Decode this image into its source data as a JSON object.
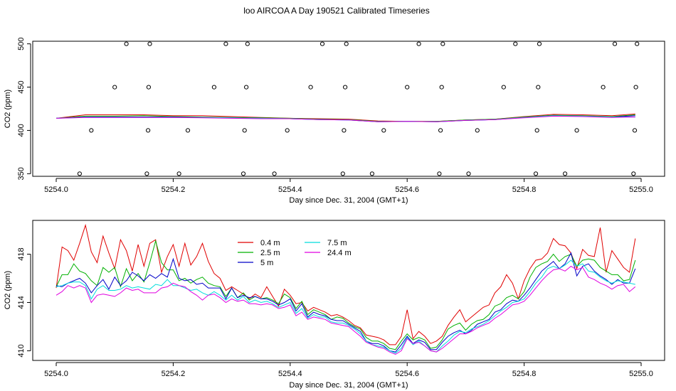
{
  "title": "loo AIRCOA A  Day 190521  Calibrated Timeseries",
  "legend_entries": [
    "0.4 m",
    "2.5 m",
    "5 m",
    "7.5 m",
    "24.4 m"
  ],
  "chart_data": [
    {
      "type": "line",
      "title": "loo AIRCOA A  Day 190521  Calibrated Timeseries",
      "xlabel": "Day since Dec. 31, 2004 (GMT+1)",
      "ylabel": "CO2 (ppm)",
      "xlim": [
        5254.0,
        5255.0
      ],
      "ylim": [
        347,
        503
      ],
      "xticks": [
        "5254.0",
        "5254.2",
        "5254.4",
        "5254.6",
        "5254.8",
        "5255.0"
      ],
      "yticks": [
        "350",
        "400",
        "450",
        "500"
      ],
      "legend": "none",
      "series": [
        {
          "color": "#e00000",
          "x": [
            5254.0,
            5254.05,
            5254.1,
            5254.15,
            5254.2,
            5254.25,
            5254.3,
            5254.35,
            5254.4,
            5254.45,
            5254.5,
            5254.55,
            5254.6,
            5254.65,
            5254.7,
            5254.75,
            5254.8,
            5254.85,
            5254.9,
            5254.95,
            5254.99
          ],
          "y": [
            414,
            418,
            418,
            418,
            417,
            417,
            416,
            415,
            414,
            413.5,
            413,
            411,
            410.5,
            410.5,
            412,
            413,
            416,
            418.5,
            418,
            417,
            419
          ]
        },
        {
          "color": "#00b000",
          "x": [
            5254.0,
            5254.05,
            5254.1,
            5254.15,
            5254.2,
            5254.25,
            5254.3,
            5254.35,
            5254.4,
            5254.45,
            5254.5,
            5254.55,
            5254.6,
            5254.65,
            5254.7,
            5254.75,
            5254.8,
            5254.85,
            5254.9,
            5254.95,
            5254.99
          ],
          "y": [
            414,
            416.5,
            416.5,
            417,
            416,
            415.5,
            415,
            414.5,
            414,
            413,
            412.5,
            410.5,
            410.5,
            410.5,
            412,
            413,
            415.5,
            417.5,
            417,
            416,
            418
          ]
        },
        {
          "color": "#0000c8",
          "x": [
            5254.0,
            5254.05,
            5254.1,
            5254.15,
            5254.2,
            5254.25,
            5254.3,
            5254.35,
            5254.4,
            5254.45,
            5254.5,
            5254.55,
            5254.6,
            5254.65,
            5254.7,
            5254.75,
            5254.8,
            5254.85,
            5254.9,
            5254.95,
            5254.99
          ],
          "y": [
            414,
            415.5,
            415.5,
            415.5,
            415.5,
            415,
            414.5,
            414,
            413.5,
            412.5,
            412,
            410,
            410.5,
            410,
            411.5,
            412.5,
            415,
            417,
            416.5,
            415.5,
            417
          ]
        },
        {
          "color": "#00dcdc",
          "x": [
            5254.0,
            5254.05,
            5254.1,
            5254.15,
            5254.2,
            5254.25,
            5254.3,
            5254.35,
            5254.4,
            5254.45,
            5254.5,
            5254.55,
            5254.6,
            5254.65,
            5254.7,
            5254.75,
            5254.8,
            5254.85,
            5254.9,
            5254.95,
            5254.99
          ],
          "y": [
            414,
            415,
            415,
            415,
            415,
            415,
            414.5,
            414,
            413.5,
            412.5,
            412,
            410,
            410.5,
            410,
            411.5,
            412.5,
            415,
            417,
            416.5,
            415.5,
            415.5
          ]
        },
        {
          "color": "#e000e0",
          "x": [
            5254.0,
            5254.05,
            5254.1,
            5254.15,
            5254.2,
            5254.25,
            5254.3,
            5254.35,
            5254.4,
            5254.45,
            5254.5,
            5254.55,
            5254.6,
            5254.65,
            5254.7,
            5254.75,
            5254.8,
            5254.85,
            5254.9,
            5254.95,
            5254.99
          ],
          "y": [
            414,
            415,
            415,
            415,
            415,
            414.5,
            414,
            413.5,
            413.5,
            412.5,
            412,
            410,
            410.5,
            410,
            411.5,
            412.5,
            414.5,
            416.5,
            416,
            415,
            415.5
          ]
        }
      ],
      "marker_series": {
        "marker": "open-circle",
        "x": [
          5254.04,
          5254.06,
          5254.1,
          5254.12,
          5254.155,
          5254.157,
          5254.158,
          5254.16,
          5254.21,
          5254.225,
          5254.27,
          5254.29,
          5254.32,
          5254.322,
          5254.325,
          5254.327,
          5254.373,
          5254.395,
          5254.435,
          5254.455,
          5254.49,
          5254.492,
          5254.494,
          5254.496,
          5254.54,
          5254.56,
          5254.6,
          5254.62,
          5254.655,
          5254.657,
          5254.659,
          5254.661,
          5254.705,
          5254.72,
          5254.765,
          5254.785,
          5254.82,
          5254.822,
          5254.824,
          5254.826,
          5254.87,
          5254.89,
          5254.935,
          5254.955,
          5254.987,
          5254.989,
          5254.991,
          5254.993
        ],
        "y": [
          350,
          400,
          450,
          500,
          350,
          400,
          450,
          500,
          350,
          400,
          450,
          500,
          350,
          400,
          450,
          500,
          350,
          400,
          450,
          500,
          350,
          400,
          450,
          500,
          350,
          400,
          450,
          500,
          350,
          400,
          450,
          500,
          350,
          400,
          450,
          500,
          350,
          400,
          450,
          500,
          350,
          400,
          450,
          500,
          350,
          400,
          450,
          500
        ]
      }
    },
    {
      "type": "line",
      "xlabel": "Day since Dec. 31, 2004 (GMT+1)",
      "ylabel": "CO2 (ppm)",
      "xlim": [
        5254.0,
        5255.0
      ],
      "ylim": [
        409.2,
        420.8
      ],
      "xticks": [
        "5254.0",
        "5254.2",
        "5254.4",
        "5254.6",
        "5254.8",
        "5255.0"
      ],
      "yticks": [
        "410",
        "414",
        "418"
      ],
      "legend": "top-left",
      "x": [
        5254.0,
        5254.01,
        5254.02,
        5254.03,
        5254.04,
        5254.05,
        5254.06,
        5254.07,
        5254.08,
        5254.09,
        5254.1,
        5254.11,
        5254.12,
        5254.13,
        5254.14,
        5254.15,
        5254.16,
        5254.17,
        5254.18,
        5254.19,
        5254.2,
        5254.21,
        5254.22,
        5254.23,
        5254.24,
        5254.25,
        5254.26,
        5254.27,
        5254.28,
        5254.29,
        5254.3,
        5254.31,
        5254.32,
        5254.33,
        5254.34,
        5254.35,
        5254.36,
        5254.37,
        5254.38,
        5254.39,
        5254.4,
        5254.41,
        5254.42,
        5254.43,
        5254.44,
        5254.45,
        5254.46,
        5254.47,
        5254.48,
        5254.49,
        5254.5,
        5254.51,
        5254.52,
        5254.53,
        5254.54,
        5254.55,
        5254.56,
        5254.57,
        5254.58,
        5254.59,
        5254.6,
        5254.61,
        5254.62,
        5254.63,
        5254.64,
        5254.65,
        5254.66,
        5254.67,
        5254.68,
        5254.69,
        5254.7,
        5254.71,
        5254.72,
        5254.73,
        5254.74,
        5254.75,
        5254.76,
        5254.77,
        5254.78,
        5254.79,
        5254.8,
        5254.81,
        5254.82,
        5254.83,
        5254.84,
        5254.85,
        5254.86,
        5254.87,
        5254.88,
        5254.89,
        5254.9,
        5254.91,
        5254.92,
        5254.93,
        5254.94,
        5254.95,
        5254.96,
        5254.97,
        5254.98,
        5254.99
      ],
      "series": [
        {
          "name": "0.4 m",
          "color": "#e00000",
          "values": [
            415.2,
            418.6,
            418.3,
            417.5,
            418.9,
            420.4,
            418.2,
            417.3,
            419.5,
            418.1,
            416.8,
            419.2,
            418.3,
            416.6,
            418.8,
            417.0,
            418.9,
            419.2,
            416.5,
            417.8,
            418.8,
            417.0,
            418.9,
            417.1,
            417.8,
            418.9,
            417.4,
            416.4,
            416.0,
            415.0,
            415.3,
            415.0,
            414.7,
            414.3,
            414.7,
            414.4,
            415.3,
            414.5,
            413.7,
            415.1,
            414.6,
            413.9,
            414.0,
            413.3,
            413.6,
            413.4,
            413.2,
            412.9,
            413.0,
            412.8,
            412.5,
            412.1,
            411.9,
            411.3,
            411.2,
            411.1,
            410.9,
            410.5,
            410.5,
            411.2,
            413.4,
            411.0,
            411.6,
            411.2,
            410.6,
            410.8,
            411.2,
            412.1,
            412.8,
            413.4,
            412.4,
            412.8,
            413.2,
            413.6,
            413.8,
            414.8,
            415.3,
            416.3,
            415.6,
            414.3,
            415.8,
            416.8,
            417.5,
            417.6,
            418.1,
            419.3,
            418.8,
            418.7,
            418.1,
            416.8,
            418.4,
            417.9,
            417.8,
            420.2,
            416.5,
            418.3,
            417.6,
            416.9,
            416.5,
            419.3
          ]
        },
        {
          "name": "2.5 m",
          "color": "#00b000",
          "values": [
            415.3,
            416.3,
            416.3,
            417.2,
            416.6,
            416.4,
            415.8,
            415.4,
            416.9,
            416.5,
            416.9,
            415.3,
            416.8,
            415.8,
            416.4,
            415.7,
            417.3,
            419.1,
            417.3,
            416.7,
            416.7,
            415.8,
            416.0,
            415.6,
            415.9,
            416.1,
            415.6,
            415.4,
            415.3,
            414.5,
            415.2,
            414.4,
            414.8,
            414.2,
            414.5,
            414.3,
            414.4,
            414.2,
            413.9,
            414.7,
            414.4,
            413.5,
            414.1,
            413.0,
            413.4,
            413.2,
            413.0,
            412.6,
            412.8,
            412.7,
            412.3,
            412.0,
            411.8,
            411.1,
            410.8,
            410.8,
            410.6,
            410.2,
            410.1,
            410.8,
            411.4,
            410.9,
            411.1,
            410.9,
            410.2,
            410.3,
            410.9,
            411.8,
            412.1,
            412.3,
            411.7,
            412.2,
            412.5,
            412.6,
            413.0,
            413.7,
            413.9,
            414.4,
            414.6,
            414.3,
            414.9,
            416.1,
            416.9,
            417.2,
            417.4,
            418.0,
            417.4,
            417.8,
            418.0,
            417.0,
            417.5,
            417.6,
            417.5,
            416.9,
            416.6,
            416.3,
            416.3,
            415.8,
            415.9,
            417.5
          ]
        },
        {
          "name": "5 m",
          "color": "#0000c8",
          "values": [
            415.4,
            415.3,
            415.6,
            415.8,
            416.0,
            415.6,
            414.8,
            415.4,
            415.9,
            415.1,
            416.1,
            415.4,
            415.8,
            416.5,
            416.2,
            415.8,
            416.3,
            416.0,
            416.4,
            416.1,
            417.6,
            416.0,
            415.8,
            415.9,
            415.5,
            415.6,
            415.2,
            415.2,
            415.2,
            414.3,
            415.2,
            414.4,
            414.6,
            414.4,
            414.5,
            414.3,
            414.3,
            414.1,
            413.8,
            414.0,
            414.3,
            413.3,
            413.9,
            412.8,
            413.2,
            413.0,
            412.9,
            412.6,
            412.5,
            412.5,
            412.2,
            411.9,
            411.6,
            410.8,
            410.6,
            410.6,
            410.4,
            410.0,
            409.9,
            410.5,
            411.2,
            410.6,
            410.9,
            410.7,
            410.1,
            410.1,
            410.7,
            411.2,
            411.5,
            411.7,
            411.4,
            411.7,
            412.2,
            412.4,
            412.6,
            413.2,
            413.4,
            413.9,
            414.2,
            414.1,
            414.6,
            415.2,
            415.9,
            416.6,
            417.0,
            417.4,
            416.8,
            417.2,
            418.1,
            416.2,
            417.0,
            417.2,
            416.6,
            416.2,
            415.9,
            415.5,
            415.9,
            415.6,
            415.6,
            416.8
          ]
        },
        {
          "name": "7.5 m",
          "color": "#00dcdc",
          "values": [
            415.3,
            415.4,
            415.6,
            415.7,
            415.7,
            415.4,
            414.3,
            415.1,
            415.4,
            415.0,
            415.0,
            415.1,
            415.4,
            415.2,
            415.3,
            415.2,
            415.1,
            415.5,
            415.4,
            415.9,
            415.4,
            415.4,
            415.2,
            415.0,
            415.1,
            414.8,
            414.6,
            414.9,
            414.6,
            414.2,
            414.6,
            414.2,
            414.5,
            414.0,
            414.2,
            414.0,
            414.1,
            413.9,
            413.6,
            413.8,
            414.0,
            413.1,
            413.5,
            412.7,
            413.0,
            412.8,
            412.8,
            412.4,
            412.3,
            412.3,
            412.1,
            411.8,
            411.4,
            410.8,
            410.5,
            410.4,
            410.3,
            410.0,
            409.8,
            410.2,
            411.1,
            410.5,
            410.8,
            410.4,
            410.0,
            409.9,
            410.4,
            410.8,
            411.3,
            411.6,
            411.5,
            411.8,
            412.0,
            412.2,
            412.5,
            412.9,
            413.3,
            413.6,
            414.0,
            414.1,
            414.3,
            414.9,
            415.6,
            416.1,
            416.8,
            417.0,
            416.8,
            417.1,
            417.5,
            417.0,
            417.2,
            416.6,
            416.5,
            416.1,
            415.8,
            415.6,
            415.8,
            415.7,
            415.6,
            415.5
          ]
        },
        {
          "name": "24.4 m",
          "color": "#e000e0",
          "values": [
            414.6,
            414.9,
            415.4,
            415.2,
            415.4,
            415.2,
            414.0,
            414.6,
            414.7,
            414.6,
            414.5,
            414.8,
            415.2,
            415.0,
            415.1,
            414.8,
            414.8,
            414.8,
            415.2,
            415.3,
            415.6,
            415.4,
            415.3,
            414.9,
            414.6,
            414.2,
            414.6,
            414.7,
            414.4,
            414.0,
            414.3,
            414.1,
            414.2,
            413.9,
            413.9,
            413.8,
            413.9,
            413.8,
            413.5,
            413.6,
            413.8,
            412.9,
            413.2,
            412.6,
            412.8,
            412.7,
            412.6,
            412.3,
            412.2,
            412.1,
            412.0,
            411.6,
            411.2,
            410.7,
            410.5,
            410.3,
            410.2,
            409.9,
            409.7,
            410.0,
            411.0,
            410.6,
            410.7,
            410.4,
            410.0,
            409.9,
            410.2,
            410.6,
            411.0,
            411.4,
            411.4,
            411.6,
            411.9,
            412.1,
            412.3,
            412.7,
            413.0,
            413.4,
            413.8,
            413.9,
            414.1,
            414.6,
            415.2,
            415.8,
            416.3,
            416.7,
            416.8,
            416.6,
            417.0,
            416.7,
            416.9,
            416.1,
            415.9,
            415.6,
            415.4,
            415.1,
            415.4,
            415.5,
            414.9,
            415.3
          ]
        }
      ]
    }
  ]
}
